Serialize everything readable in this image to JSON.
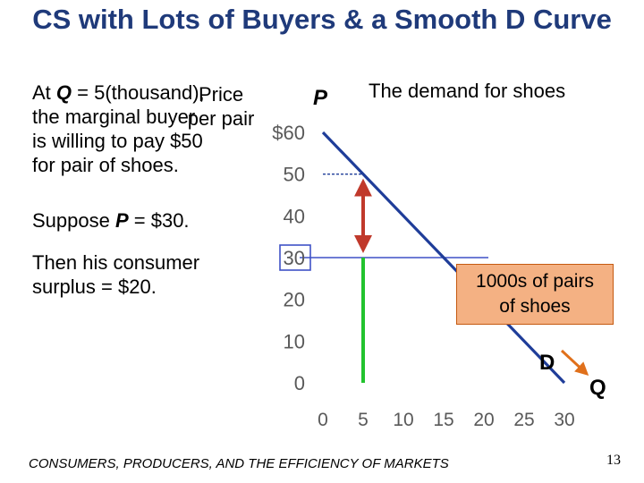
{
  "title": "CS with Lots of Buyers & a Smooth D Curve",
  "paragraph1": {
    "line1_prefix": "At ",
    "line1_q": "Q",
    "line1_suffix": " = 5(thousand),",
    "line2": "the marginal buyer",
    "line3": "is willing to pay $50",
    "line4": "for pair of shoes."
  },
  "overlap_label": {
    "line1": "Price",
    "line2": "per pair"
  },
  "paragraph2": {
    "prefix": "Suppose ",
    "p": "P",
    "suffix": " = $30."
  },
  "paragraph3": {
    "line1": "Then his consumer",
    "line2": "surplus = $20."
  },
  "chart_title": "The demand for shoes",
  "units_box": {
    "line1": "1000s of pairs",
    "line2": "of shoes"
  },
  "footer": "CONSUMERS, PRODUCERS, AND THE EFFICIENCY OF MARKETS",
  "page_number": "13",
  "chart_data": {
    "type": "line",
    "title": "The demand for shoes",
    "xlabel": "Q",
    "ylabel": "P",
    "x_ticks": [
      "0",
      "5",
      "10",
      "15",
      "20",
      "25",
      "30"
    ],
    "y_ticks": [
      "0",
      "10",
      "20",
      "30",
      "40",
      "50",
      "$60"
    ],
    "xlim": [
      0,
      30
    ],
    "ylim": [
      0,
      60
    ],
    "series": [
      {
        "name": "D",
        "x": [
          0,
          30
        ],
        "y": [
          60,
          0
        ]
      }
    ],
    "price_line": {
      "price": 30,
      "label": "30"
    },
    "annotations": {
      "curve_label": "D",
      "q_axis_label": "Q",
      "p_axis_label": "P",
      "marginal_buyer_q": 5,
      "willingness_to_pay": 50,
      "consumer_surplus": 20
    },
    "colors": {
      "curve": "#1f3d99",
      "price_line": "#3f51c6",
      "quantity_bar": "#22c32e",
      "surplus_arrow": "#c0392b",
      "axis_arrow": "#e0701b",
      "tick_text": "#595959"
    }
  }
}
